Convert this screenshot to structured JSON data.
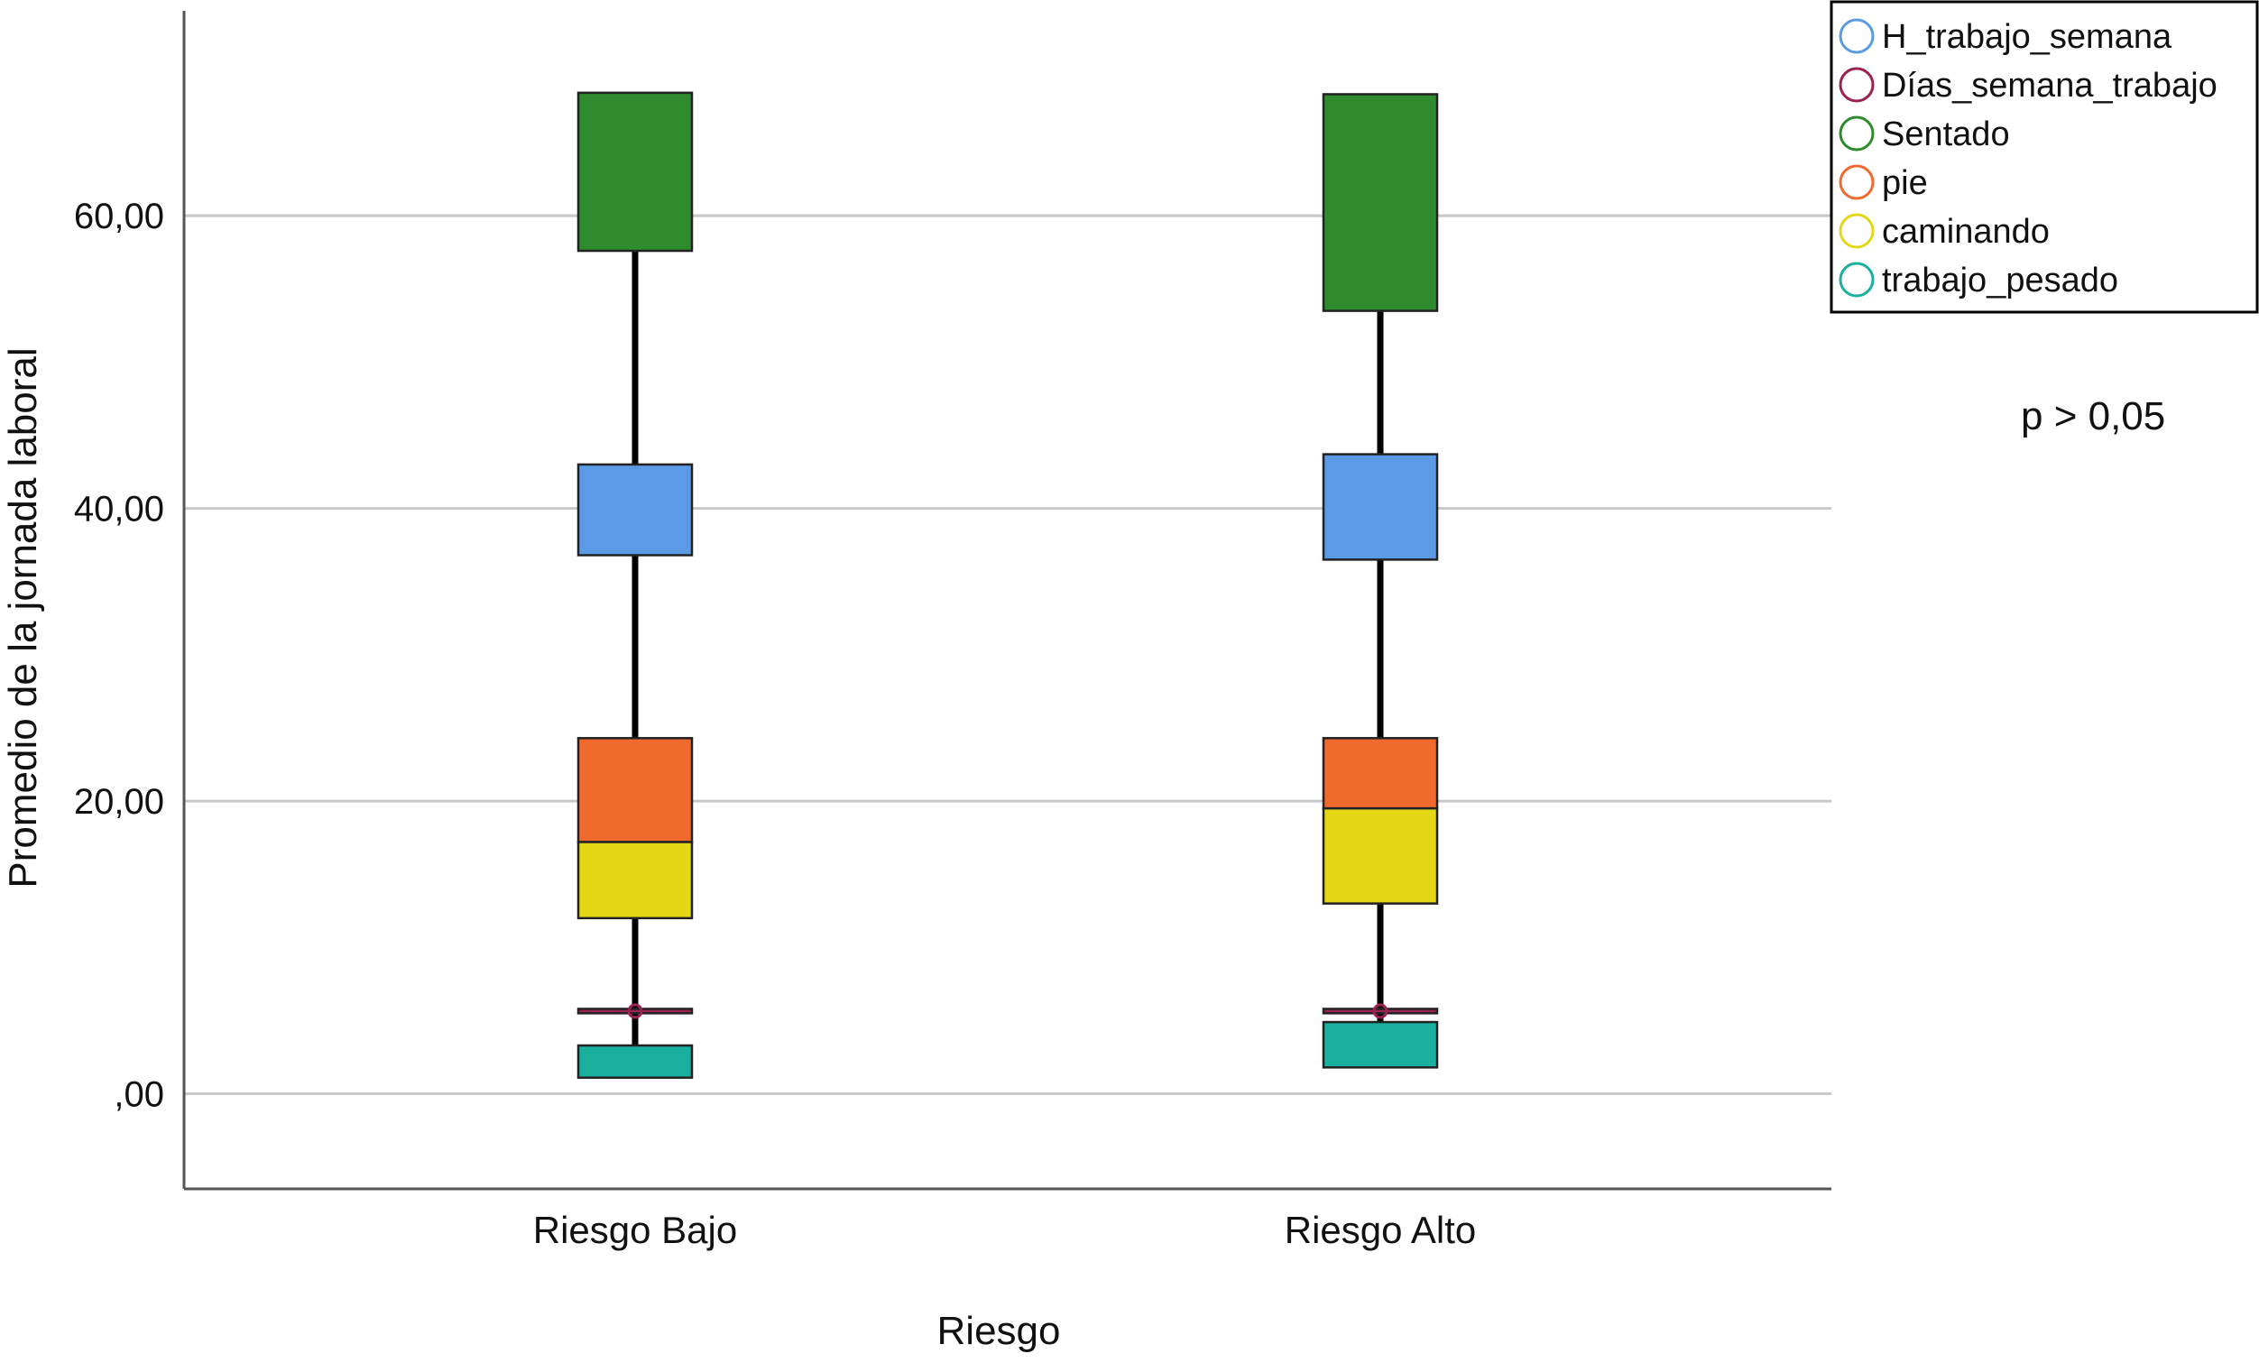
{
  "chart_data": {
    "type": "boxplot",
    "xlabel": "Riesgo",
    "ylabel": "Promedio de la jornada laboral",
    "ylim": [
      -6.5,
      74
    ],
    "yticks": [
      0,
      20,
      40,
      60
    ],
    "ytick_labels": [
      ",00",
      "20,00",
      "40,00",
      "60,00"
    ],
    "grid": true,
    "legend_position": "top-right",
    "annotation": "p > 0,05",
    "categories": [
      "Riesgo Bajo",
      "Riesgo Alto"
    ],
    "series": [
      {
        "name": "H_trabajo_semana",
        "color": "#5b9be6",
        "boxes": [
          {
            "q1": 36.8,
            "q3": 43.0
          },
          {
            "q1": 36.5,
            "q3": 43.7
          }
        ]
      },
      {
        "name": "Días_semana_trabajo",
        "color": "#9c2251",
        "boxes": [
          {
            "q1": 5.5,
            "q3": 5.8
          },
          {
            "q1": 5.5,
            "q3": 5.8
          }
        ]
      },
      {
        "name": "Sentado",
        "color": "#2e8b2e",
        "boxes": [
          {
            "q1": 57.6,
            "q3": 68.4
          },
          {
            "q1": 53.5,
            "q3": 68.3
          }
        ]
      },
      {
        "name": "pie",
        "color": "#f06a2e",
        "boxes": [
          {
            "q1": 17.2,
            "q3": 24.3
          },
          {
            "q1": 19.5,
            "q3": 24.3
          }
        ]
      },
      {
        "name": "caminando",
        "color": "#e4d816",
        "boxes": [
          {
            "q1": 12.0,
            "q3": 17.2
          },
          {
            "q1": 13.0,
            "q3": 19.5
          }
        ]
      },
      {
        "name": "trabajo_pesado",
        "color": "#1ab0a0",
        "boxes": [
          {
            "q1": 1.1,
            "q3": 3.3
          },
          {
            "q1": 1.8,
            "q3": 4.9
          }
        ]
      }
    ],
    "whisker_range": [
      {
        "min": 1.1,
        "max": 68.4
      },
      {
        "min": 1.8,
        "max": 68.3
      }
    ]
  }
}
